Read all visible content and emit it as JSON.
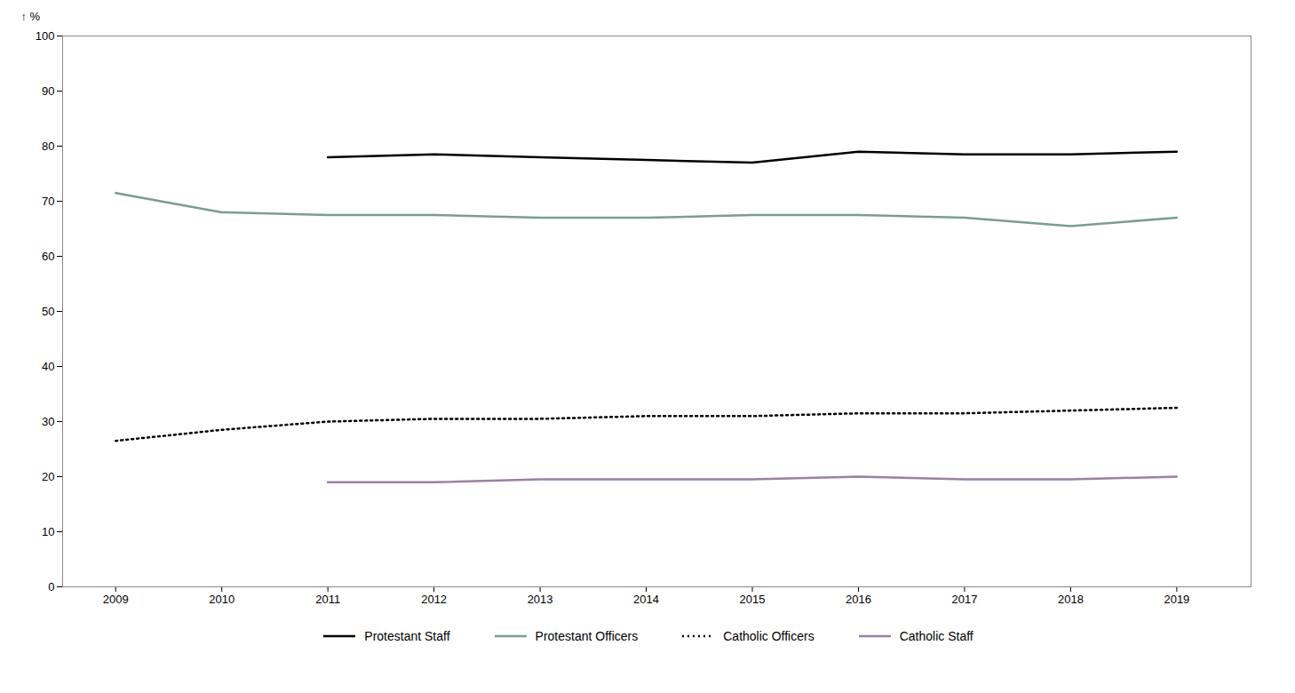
{
  "chart_data": {
    "type": "line",
    "ylabel": "%",
    "x": [
      2009,
      2010,
      2011,
      2012,
      2013,
      2014,
      2015,
      2016,
      2017,
      2018,
      2019
    ],
    "series": [
      {
        "name": "Protestant Staff",
        "color": "#000000",
        "line_style": "solid",
        "values": [
          null,
          null,
          78.0,
          78.5,
          78.0,
          77.5,
          77.0,
          79.0,
          78.5,
          78.5,
          79.0
        ]
      },
      {
        "name": "Protestant Officers",
        "color": "#7a9e8e",
        "line_style": "solid",
        "values": [
          71.5,
          68.0,
          67.5,
          67.5,
          67.0,
          67.0,
          67.5,
          67.5,
          67.0,
          65.5,
          67.0
        ]
      },
      {
        "name": "Catholic Officers",
        "color": "#000000",
        "line_style": "dotted",
        "values": [
          26.5,
          28.5,
          30.0,
          30.5,
          30.5,
          31.0,
          31.0,
          31.5,
          31.5,
          32.0,
          32.5
        ]
      },
      {
        "name": "Catholic Staff",
        "color": "#9b7fa6",
        "line_style": "solid",
        "values": [
          null,
          null,
          19.0,
          19.0,
          19.5,
          19.5,
          19.5,
          20.0,
          19.5,
          19.5,
          20.0
        ]
      }
    ],
    "xlim": [
      2008.5,
      2019.7
    ],
    "xticks": [
      2009,
      2010,
      2011,
      2012,
      2013,
      2014,
      2015,
      2016,
      2017,
      2018,
      2019
    ],
    "ylim": [
      0,
      100
    ],
    "yticks": [
      0,
      10,
      20,
      30,
      40,
      50,
      60,
      70,
      80,
      90,
      100
    ],
    "grid": false,
    "legend": "bottom"
  }
}
